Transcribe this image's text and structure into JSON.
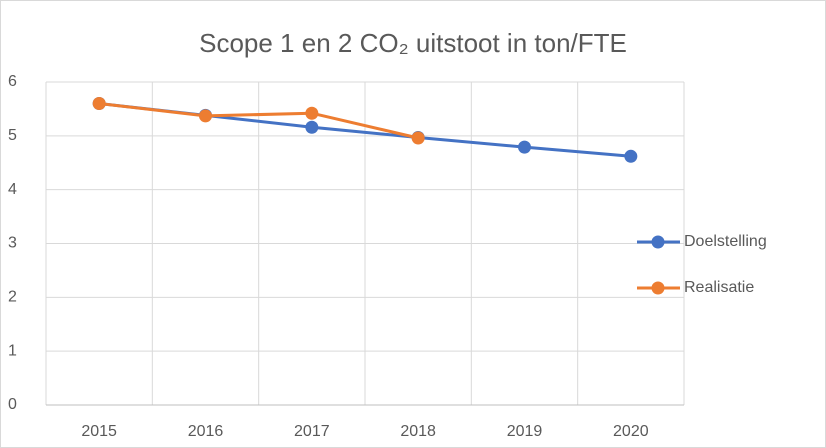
{
  "chart_data": {
    "type": "line",
    "title": "Scope 1 en 2 CO₂ uitstoot in ton/FTE",
    "categories": [
      "2015",
      "2016",
      "2017",
      "2018",
      "2019",
      "2020"
    ],
    "series": [
      {
        "name": "Doelstelling",
        "color": "#4472c4",
        "values": [
          5.6,
          5.38,
          5.16,
          4.97,
          4.79,
          4.62
        ]
      },
      {
        "name": "Realisatie",
        "color": "#ed7d31",
        "values": [
          5.6,
          5.37,
          5.42,
          4.96,
          null,
          null
        ]
      }
    ],
    "ylim": [
      0,
      6
    ],
    "yticks": [
      0,
      1,
      2,
      3,
      4,
      5,
      6
    ],
    "grid": true,
    "legend": "right"
  }
}
